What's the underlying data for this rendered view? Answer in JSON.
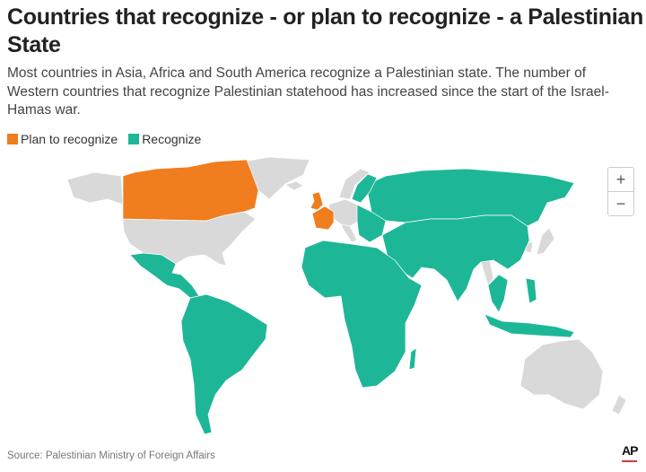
{
  "title": "Countries that recognize - or plan to recognize - a Palestinian State",
  "subtitle": "Most countries in Asia, Africa and South America recognize a Palestinian state. The number of Western countries that recognize Palestinian statehood has increased since the start of the Israel-Hamas war.",
  "legend": [
    {
      "label": "Plan to recognize",
      "color": "#f07d1e"
    },
    {
      "label": "Recognize",
      "color": "#1db798"
    }
  ],
  "colors": {
    "plan": "#f07d1e",
    "recognize": "#1db798",
    "no_data": "#d9d9d9"
  },
  "zoom_controls": {
    "zoom_in": "+",
    "zoom_out": "−"
  },
  "source": "Source: Palestinian Ministry of Foreign Affairs",
  "logo": "AP"
}
